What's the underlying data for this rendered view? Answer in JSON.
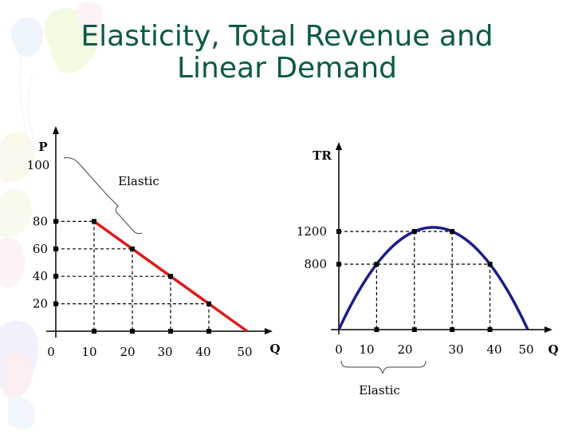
{
  "slide": {
    "title_line1": "Elasticity, Total Revenue and",
    "title_line2": "Linear Demand"
  },
  "colors": {
    "title": "#0b5a47",
    "demand_line": "#dd1a1a",
    "tr_curve": "#1c1c8c",
    "axis": "#000000",
    "guides": "#000000"
  },
  "chart_data": [
    {
      "type": "line",
      "name": "demand",
      "xlabel": "Q",
      "ylabel": "P",
      "x_ticks": [
        "0",
        "10",
        "20",
        "30",
        "40",
        "50"
      ],
      "y_ticks": [
        "100",
        "80",
        "60",
        "40",
        "20"
      ],
      "xlim": [
        0,
        50
      ],
      "ylim": [
        0,
        100
      ],
      "series": [
        {
          "x": [
            10,
            20,
            30,
            40,
            50
          ],
          "y": [
            80,
            60,
            40,
            20,
            0
          ]
        }
      ],
      "guide_points": [
        {
          "q": 10,
          "p": 80
        },
        {
          "q": 20,
          "p": 60
        },
        {
          "q": 30,
          "p": 40
        },
        {
          "q": 40,
          "p": 20
        }
      ],
      "annotation": {
        "text": "Elastic",
        "brace_from": {
          "q": 0,
          "p": 100
        },
        "brace_to": {
          "q": 20,
          "p": 60
        }
      }
    },
    {
      "type": "line",
      "name": "total_revenue",
      "xlabel": "Q",
      "ylabel": "TR",
      "x_ticks": [
        "0",
        "10",
        "20",
        "30",
        "40",
        "50"
      ],
      "y_ticks": [
        "1200",
        "800"
      ],
      "xlim": [
        0,
        50
      ],
      "ylim": [
        0,
        1450
      ],
      "series": [
        {
          "x": [
            0,
            10,
            20,
            25,
            30,
            40,
            50
          ],
          "y": [
            0,
            800,
            1200,
            1250,
            1200,
            800,
            0
          ]
        }
      ],
      "guide_points": [
        {
          "q": 10,
          "tr": 800
        },
        {
          "q": 20,
          "tr": 1200
        },
        {
          "q": 30,
          "tr": 1200
        },
        {
          "q": 40,
          "tr": 800
        }
      ],
      "annotation": {
        "text": "Elastic",
        "brace_from_q": 0,
        "brace_to_q": 20
      }
    }
  ]
}
